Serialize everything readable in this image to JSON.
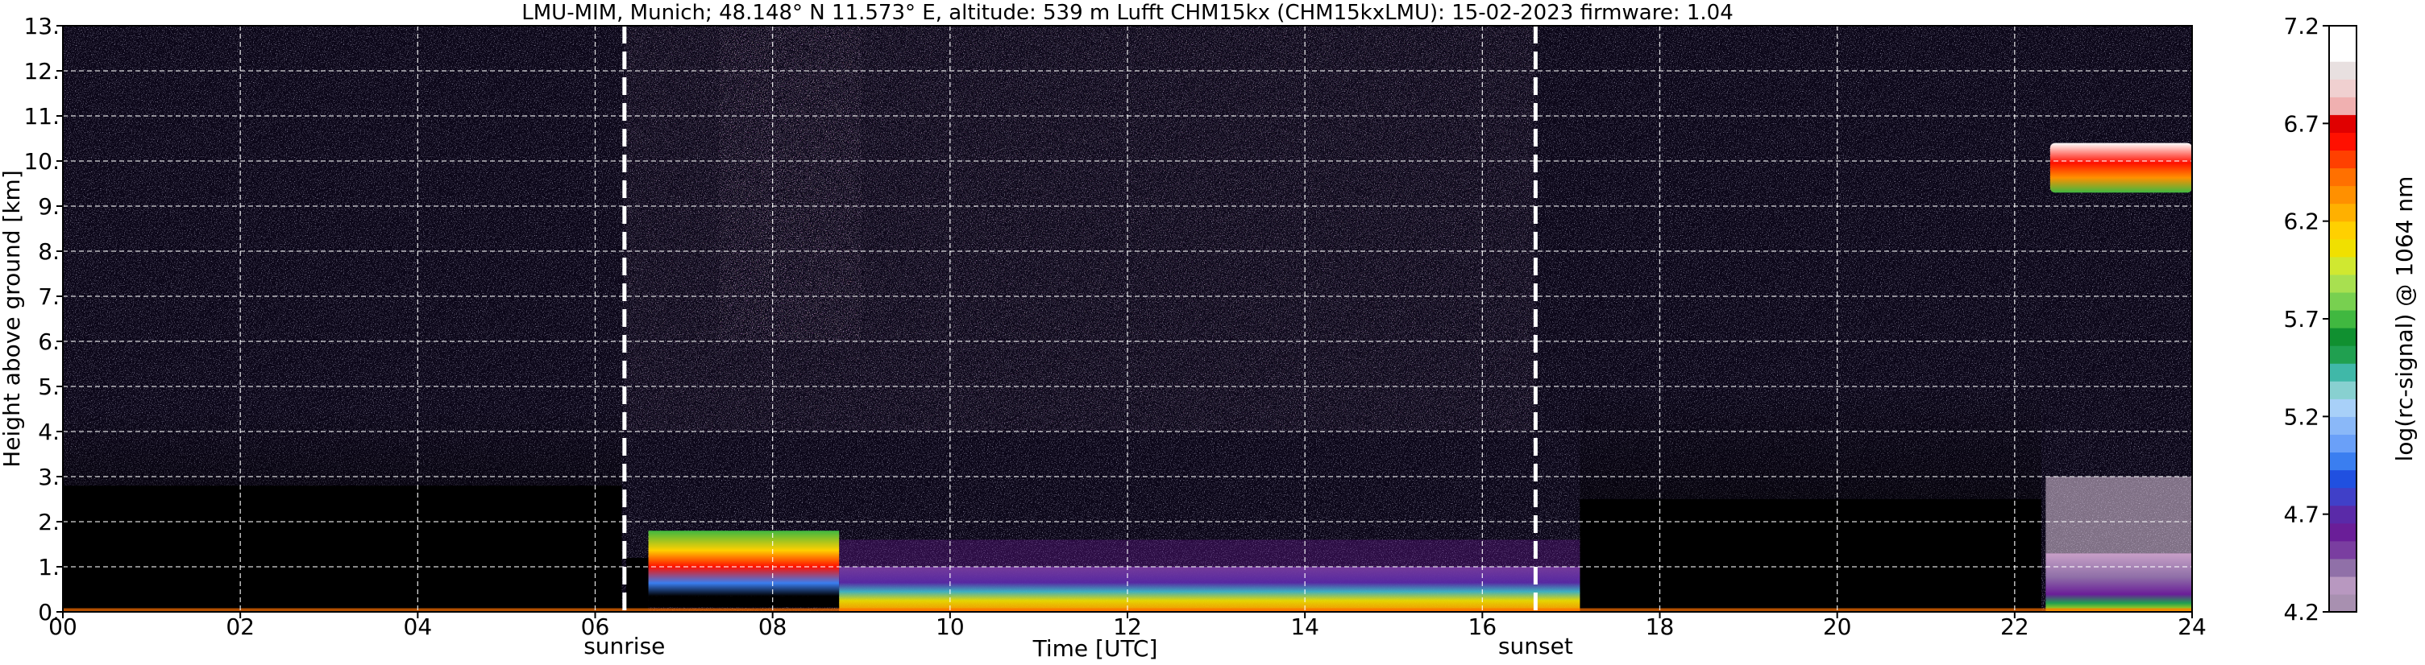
{
  "chart_data": {
    "type": "heatmap",
    "title": "LMU-MIM, Munich; 48.148° N 11.573° E, altitude: 539 m    Lufft CHM15kx (CHM15kxLMU): 15-02-2023    firmware: 1.04",
    "xlabel": "Time [UTC]",
    "ylabel": "Height above ground [km]",
    "xlim": [
      0,
      24
    ],
    "ylim": [
      0,
      13
    ],
    "x_ticks": [
      "00",
      "02",
      "04",
      "06",
      "08",
      "10",
      "12",
      "14",
      "16",
      "18",
      "20",
      "22",
      "24"
    ],
    "y_ticks": [
      "0.",
      "1.",
      "2.",
      "3.",
      "4.",
      "5.",
      "6.",
      "7.",
      "8.",
      "9.",
      "10.",
      "11.",
      "12.",
      "13."
    ],
    "grid": true,
    "colorbar": {
      "label": "log(rc-signal) @ 1064 nm",
      "min": 4.2,
      "max": 7.2,
      "ticks": [
        "4.2",
        "4.7",
        "5.2",
        "5.7",
        "6.2",
        "6.7",
        "7.2"
      ],
      "colors": [
        "#a890b0",
        "#b898c0",
        "#9070a8",
        "#7a3ea0",
        "#6a1e98",
        "#5a2aa8",
        "#4040c8",
        "#2050e0",
        "#3a7ef0",
        "#6aa0f8",
        "#8ab8f8",
        "#a8d0f8",
        "#88d0d0",
        "#40b8a8",
        "#20a050",
        "#109030",
        "#40b840",
        "#78d050",
        "#a8e050",
        "#d0e830",
        "#f0e000",
        "#ffd000",
        "#ffb000",
        "#ff9000",
        "#ff7000",
        "#ff4000",
        "#ff1000",
        "#e00000",
        "#f0b0b0",
        "#f0d0d0",
        "#e8e0e0",
        "#ffffff",
        "#ffffff"
      ]
    },
    "events": [
      {
        "label": "sunrise",
        "time": 6.33
      },
      {
        "label": "sunset",
        "time": 16.6
      }
    ]
  }
}
